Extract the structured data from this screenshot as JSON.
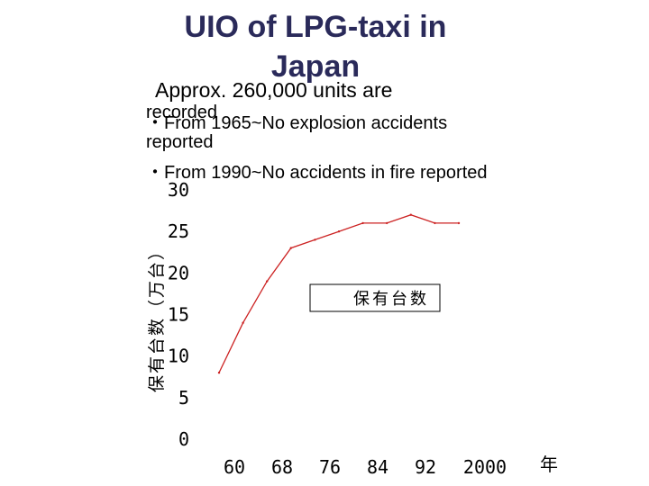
{
  "title_lines": [
    "UIO of LPG-taxi in",
    "Japan"
  ],
  "bullets": {
    "b1": "Approx. 260,000 units are",
    "b1b": "recorded",
    "b2": "・From 1965~No explosion accidents",
    "b2b": "reported",
    "b3": "・From 1990~No accidents in fire reported"
  },
  "colors": {
    "line": "#cc2222",
    "title": "#2a2a5a"
  },
  "chart_data": {
    "type": "line",
    "ylabel": "保有台数（万台）",
    "xlabel": "年",
    "x_tick_labels": [
      "60",
      "68",
      "76",
      "84",
      "92",
      "2000"
    ],
    "y_tick_labels": [
      "0",
      "5",
      "10",
      "15",
      "20",
      "25",
      "30"
    ],
    "ylim": [
      0,
      30
    ],
    "legend": "保有台数",
    "legend_position": "center-right",
    "grid": false,
    "series": [
      {
        "name": "保有台数",
        "x": [
          1960,
          1964,
          1968,
          1972,
          1976,
          1980,
          1984,
          1988,
          1992,
          1996,
          2000
        ],
        "values": [
          8,
          14,
          19,
          23,
          24,
          25,
          26,
          26,
          27,
          26,
          26
        ]
      }
    ]
  }
}
